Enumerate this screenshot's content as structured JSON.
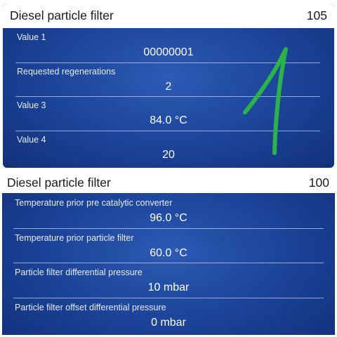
{
  "top_panel": {
    "title": "Diesel particle filter",
    "group_number": "105",
    "rows": [
      {
        "label": "Value 1",
        "value": "00000001"
      },
      {
        "label": "Requested regenerations",
        "value": "2"
      },
      {
        "label": "Value 3",
        "value": "84.0 °C"
      },
      {
        "label": "Value 4",
        "value": "20"
      }
    ]
  },
  "bottom_panel": {
    "title": "Diesel particle filter",
    "group_number": "100",
    "rows": [
      {
        "label": "Temperature prior pre catalytic converter",
        "value": "96.0 °C"
      },
      {
        "label": "Temperature prior particle filter",
        "value": "60.0 °C"
      },
      {
        "label": "Particle filter differential pressure",
        "value": "10 mbar"
      },
      {
        "label": "Particle filter offset differential pressure",
        "value": "0 mbar"
      }
    ]
  },
  "colors": {
    "panel_background": "#1e479d",
    "header_background": "#ffffff",
    "annotation_stroke": "#2bb34a"
  }
}
